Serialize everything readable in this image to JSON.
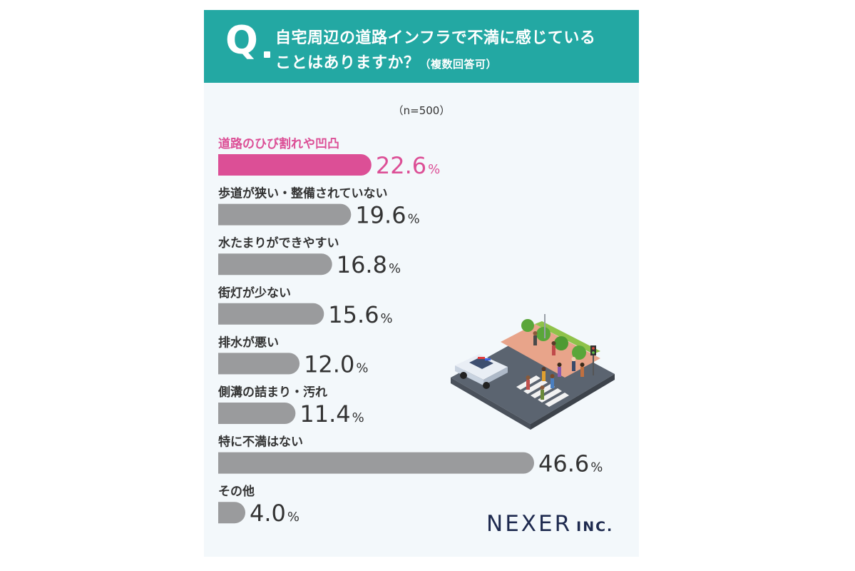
{
  "question": {
    "prefix": "Q",
    "line1": "自宅周辺の道路インフラで不満に感じている",
    "line2": "ことはありますか？",
    "note": "（複数回答可）"
  },
  "sample_size": "（n=500）",
  "logo": {
    "main": "NEXER",
    "suffix": "INC."
  },
  "colors": {
    "header": "#23a8a3",
    "highlight": "#dc4f96",
    "bar": "#9a9b9d",
    "value_text": "#333333",
    "background": "#f3f8fb"
  },
  "chart_data": {
    "type": "bar",
    "orientation": "horizontal",
    "unit": "%",
    "categories": [
      "道路のひび割れや凹凸",
      "歩道が狭い・整備されていない",
      "水たまりができやすい",
      "街灯が少ない",
      "排水が悪い",
      "側溝の詰まり・汚れ",
      "特に不満はない",
      "その他"
    ],
    "values": [
      22.6,
      19.6,
      16.8,
      15.6,
      12.0,
      11.4,
      46.6,
      4.0
    ],
    "value_labels": [
      "22.6",
      "19.6",
      "16.8",
      "15.6",
      "12.0",
      "11.4",
      "46.6",
      "4.0"
    ],
    "highlight_index": 0,
    "title": "",
    "xlabel": "",
    "ylabel": "",
    "grid": false
  }
}
